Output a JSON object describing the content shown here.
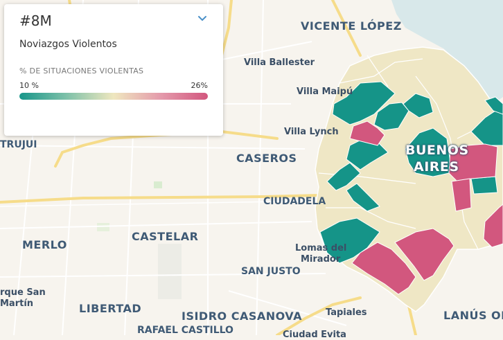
{
  "panel": {
    "tag": "#8M",
    "subtitle": "Noviazgos Violentos",
    "metric_label": "% DE SITUACIONES VIOLENTAS",
    "range_min": "10 %",
    "range_max": "26%",
    "dropdown_icon": "chevron-down-icon",
    "gradient_colors": [
      "#18968a",
      "#7ec1a9",
      "#efe7bf",
      "#e49aab",
      "#d2577e"
    ]
  },
  "map_labels": {
    "vicente_lopez": "VICENTE LÓPEZ",
    "villa_ballester": "Villa Ballester",
    "villa_maipu": "Villa Maipú",
    "villa_lynch": "Villa Lynch",
    "caseros": "CASEROS",
    "ciudadela": "CIUDADELA",
    "trujui": "TRUJUI",
    "castelar": "CASTELAR",
    "merlo": "MERLO",
    "lomas_line1": "Lomas del",
    "lomas_line2": "Mirador",
    "san_justo": "SAN JUSTO",
    "parque_line1": "rque San",
    "parque_line2": "Martín",
    "libertad": "LIBERTAD",
    "isidro_casanova": "ISIDRO CASANOVA",
    "tapiales": "Tapiales",
    "lanus": "LANÚS OE",
    "rafael_castillo": "RAFAEL CASTILLO",
    "ciudad_evita": "Ciudad Evita",
    "buenos": "BUENOS",
    "aires": "AIRES"
  },
  "colors": {
    "teal": "#159488",
    "pink": "#d2577e",
    "beige": "#efe7c5",
    "water": "#d8e8ea",
    "road": "#f6dc8a",
    "land": "#f7f4ee"
  }
}
